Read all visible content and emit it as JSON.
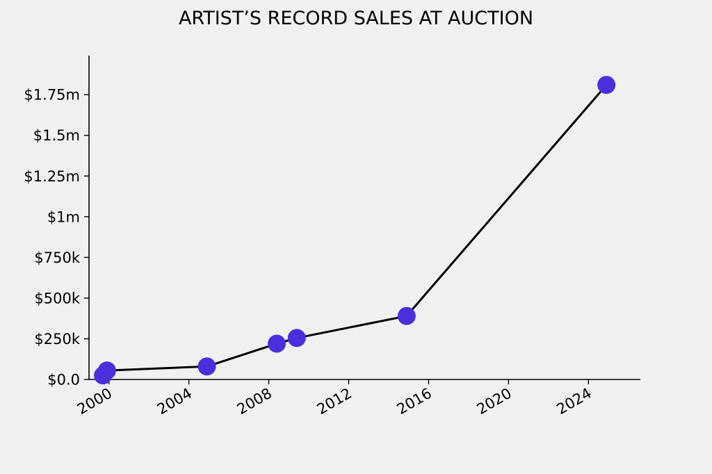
{
  "chart_data": {
    "type": "line",
    "title": "ARTIST’S RECORD SALES AT AUCTION",
    "xlabel": "",
    "ylabel": "",
    "xlim": [
      1999.0,
      2026.6
    ],
    "ylim": [
      0,
      1.99
    ],
    "x_ticks": [
      2000,
      2004,
      2008,
      2012,
      2016,
      2020,
      2024
    ],
    "y_ticks": [
      {
        "value": 0,
        "label": "$0.0"
      },
      {
        "value": 0.25,
        "label": "$250k"
      },
      {
        "value": 0.5,
        "label": "$500k"
      },
      {
        "value": 0.75,
        "label": "$750k"
      },
      {
        "value": 1.0,
        "label": "$1m"
      },
      {
        "value": 1.25,
        "label": "$1.25m"
      },
      {
        "value": 1.5,
        "label": "$1.5m"
      },
      {
        "value": 1.75,
        "label": "$1.75m"
      }
    ],
    "y_unit": "millions of dollars",
    "series": [
      {
        "x": [
          1999.7,
          1999.9,
          2004.9,
          2008.4,
          2009.4,
          2014.9,
          2024.9
        ],
        "y": [
          0.025,
          0.055,
          0.08,
          0.22,
          0.255,
          0.39,
          1.81
        ]
      }
    ],
    "grid": false,
    "line_color": "#000000",
    "marker_color": "#4b2fdc",
    "background": "#f0f0f0"
  }
}
